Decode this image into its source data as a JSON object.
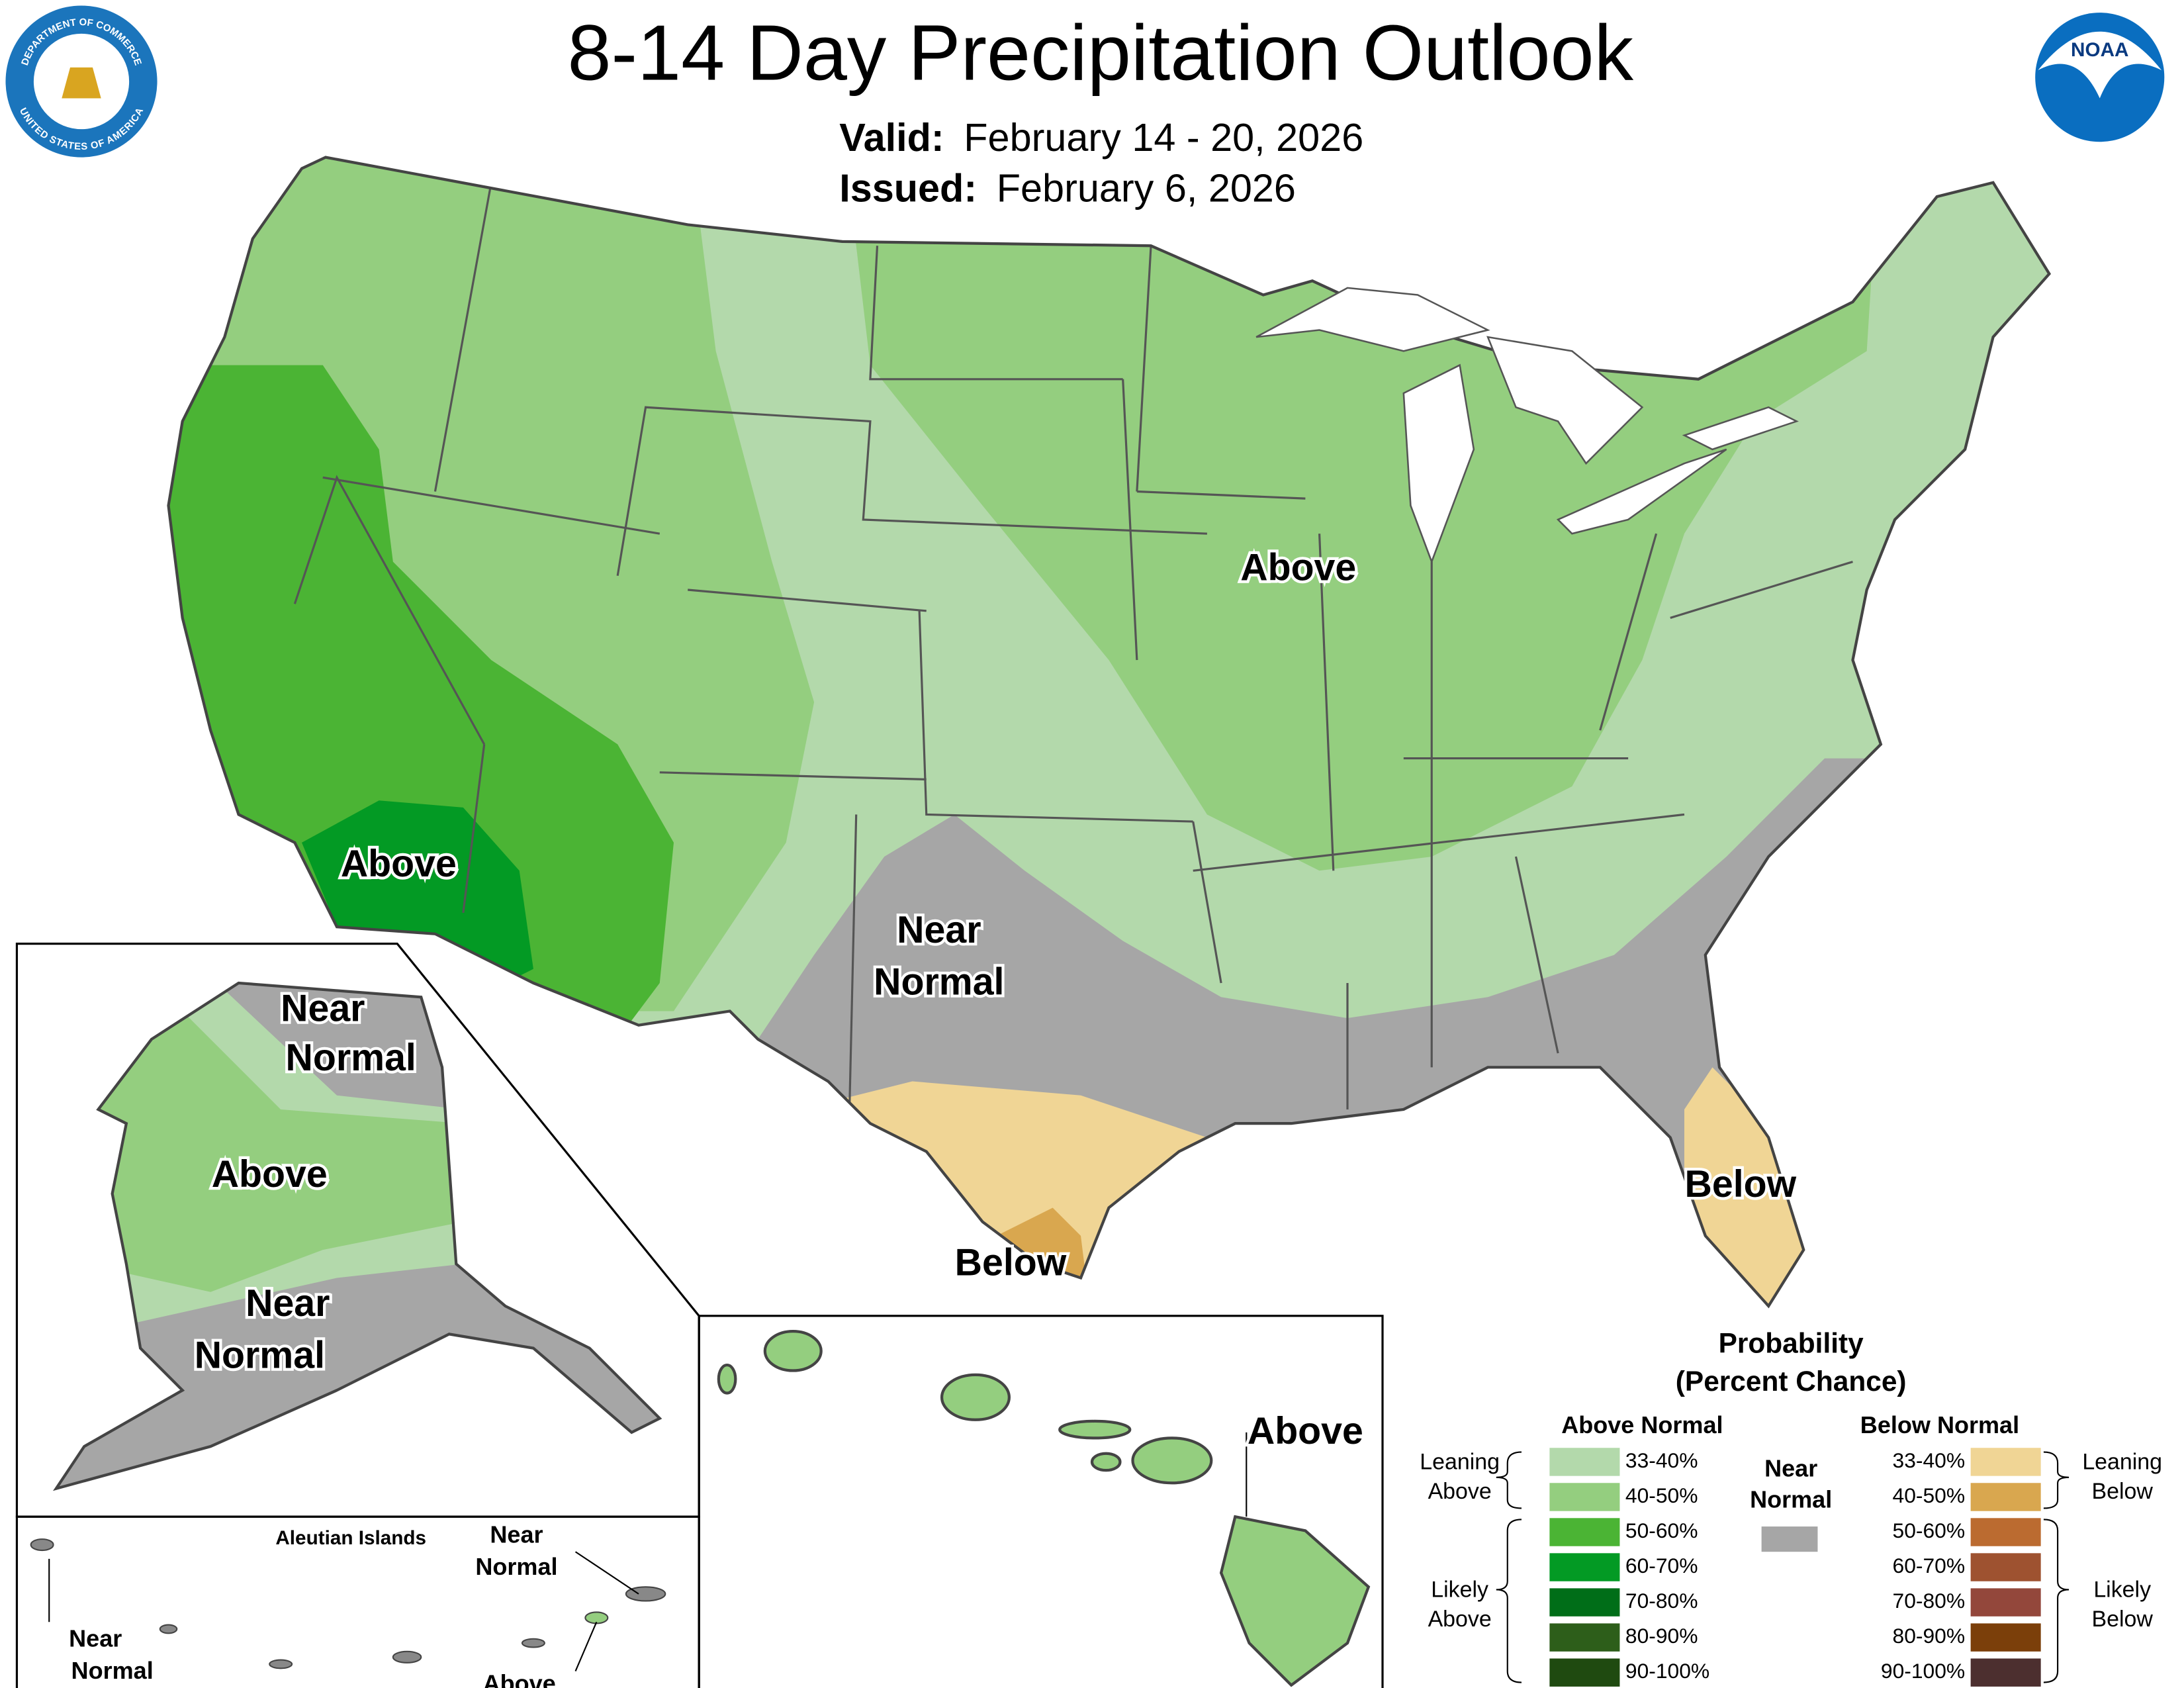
{
  "header": {
    "title": "8-14 Day Precipitation Outlook",
    "valid_label": "Valid:",
    "valid": "February 14 - 20, 2026",
    "issued_label": "Issued:",
    "issued": "February 6, 2026",
    "seal_top": "DEPARTMENT OF COMMERCE",
    "seal_bottom": "UNITED STATES OF AMERICA",
    "noaa": "NOAA"
  },
  "map": {
    "labels": [
      {
        "lines": [
          "Above"
        ]
      },
      {
        "lines": [
          "Above"
        ]
      },
      {
        "lines": [
          "Near",
          "Normal"
        ]
      },
      {
        "lines": [
          "Below"
        ]
      },
      {
        "lines": [
          "Below"
        ]
      }
    ]
  },
  "alaska": {
    "labels": [
      {
        "lines": [
          "Near",
          "Normal"
        ]
      },
      {
        "lines": [
          "Above"
        ]
      },
      {
        "lines": [
          "Near",
          "Normal"
        ]
      }
    ]
  },
  "aleutians": {
    "title": "Aleutian Islands",
    "labels": [
      {
        "lines": [
          "Near",
          "Normal"
        ]
      },
      {
        "lines": [
          "Near",
          "Normal"
        ]
      },
      {
        "lines": [
          "Above"
        ]
      }
    ]
  },
  "hawaii": {
    "labels": [
      {
        "lines": [
          "Above"
        ]
      }
    ]
  },
  "legend": {
    "title": "Probability",
    "subtitle": "(Percent Chance)",
    "above": {
      "heading": "Above Normal",
      "leaning": [
        "Leaning",
        "Above"
      ],
      "likely": [
        "Likely",
        "Above"
      ],
      "items": [
        {
          "range": "33-40%",
          "color": "#b3d9ab"
        },
        {
          "range": "40-50%",
          "color": "#94ce7f"
        },
        {
          "range": "50-60%",
          "color": "#4bb434"
        },
        {
          "range": "60-70%",
          "color": "#039a24"
        },
        {
          "range": "70-80%",
          "color": "#006e18"
        },
        {
          "range": "80-90%",
          "color": "#2d5e1a"
        },
        {
          "range": "90-100%",
          "color": "#1f4a10"
        }
      ]
    },
    "near": {
      "lines": [
        "Near",
        "Normal"
      ],
      "color": "#a6a6a6"
    },
    "below": {
      "heading": "Below Normal",
      "leaning": [
        "Leaning",
        "Below"
      ],
      "likely": [
        "Likely",
        "Below"
      ],
      "items": [
        {
          "range": "33-40%",
          "color": "#f0d595"
        },
        {
          "range": "40-50%",
          "color": "#d9a74f"
        },
        {
          "range": "50-60%",
          "color": "#bb6b30"
        },
        {
          "range": "60-70%",
          "color": "#9e5230"
        },
        {
          "range": "70-80%",
          "color": "#93473b"
        },
        {
          "range": "80-90%",
          "color": "#7b3f0a"
        },
        {
          "range": "90-100%",
          "color": "#4c2f2f"
        }
      ]
    }
  }
}
